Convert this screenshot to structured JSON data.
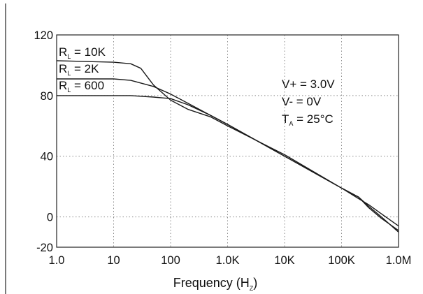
{
  "chart_data": {
    "type": "line",
    "title": "",
    "xlabel": {
      "main": "Frequency (H",
      "sub": "Z",
      "close": ")"
    },
    "ylabel": "",
    "x_scale": "log",
    "xlim": [
      1,
      1000000
    ],
    "ylim": [
      -20,
      120
    ],
    "grid": true,
    "x_ticks": [
      {
        "value": 1,
        "label": "1.0"
      },
      {
        "value": 10,
        "label": "10"
      },
      {
        "value": 100,
        "label": "100"
      },
      {
        "value": 1000,
        "label": "1.0K"
      },
      {
        "value": 10000,
        "label": "10K"
      },
      {
        "value": 100000,
        "label": "100K"
      },
      {
        "value": 1000000,
        "label": "1.0M"
      }
    ],
    "y_ticks": [
      {
        "value": 120,
        "label": "120"
      },
      {
        "value": 80,
        "label": "80"
      },
      {
        "value": 40,
        "label": "40"
      },
      {
        "value": 0,
        "label": "0"
      },
      {
        "value": -20,
        "label": "-20"
      }
    ],
    "series": [
      {
        "name": "R_L = 10K",
        "label": {
          "main": "R",
          "sub": "L",
          "rest": " = 10K"
        },
        "points": [
          [
            1,
            103
          ],
          [
            10,
            102
          ],
          [
            20,
            101
          ],
          [
            30,
            98
          ],
          [
            50,
            87
          ],
          [
            100,
            77
          ],
          [
            200,
            71
          ],
          [
            500,
            66
          ],
          [
            1000,
            60
          ],
          [
            10000,
            41
          ],
          [
            100000,
            19
          ],
          [
            200000,
            12
          ],
          [
            300000,
            8
          ],
          [
            500000,
            2
          ],
          [
            1000000,
            -6
          ]
        ]
      },
      {
        "name": "R_L = 2K",
        "label": {
          "main": "R",
          "sub": "L",
          "rest": " = 2K"
        },
        "points": [
          [
            1,
            91
          ],
          [
            10,
            91
          ],
          [
            20,
            90
          ],
          [
            50,
            86
          ],
          [
            100,
            81
          ],
          [
            200,
            75
          ],
          [
            500,
            67
          ],
          [
            1000,
            61
          ],
          [
            10000,
            40
          ],
          [
            100000,
            19
          ],
          [
            200000,
            13
          ],
          [
            300000,
            6
          ],
          [
            500000,
            -1
          ],
          [
            1000000,
            -9
          ]
        ]
      },
      {
        "name": "R_L = 600",
        "label": {
          "main": "R",
          "sub": "L",
          "rest": " = 600"
        },
        "points": [
          [
            1,
            80
          ],
          [
            10,
            80
          ],
          [
            20,
            80
          ],
          [
            50,
            79
          ],
          [
            100,
            78
          ],
          [
            200,
            74
          ],
          [
            500,
            67
          ],
          [
            1000,
            61
          ],
          [
            10000,
            40
          ],
          [
            100000,
            19
          ],
          [
            200000,
            13
          ],
          [
            300000,
            7
          ],
          [
            500000,
            0
          ],
          [
            1000000,
            -10
          ]
        ]
      }
    ],
    "annotations": [
      {
        "main": "V+ = 3.0V",
        "sub": "",
        "rest": ""
      },
      {
        "main": "V- = 0V",
        "sub": "",
        "rest": ""
      },
      {
        "main": "T",
        "sub": "A",
        "rest": " = 25°C"
      }
    ]
  }
}
